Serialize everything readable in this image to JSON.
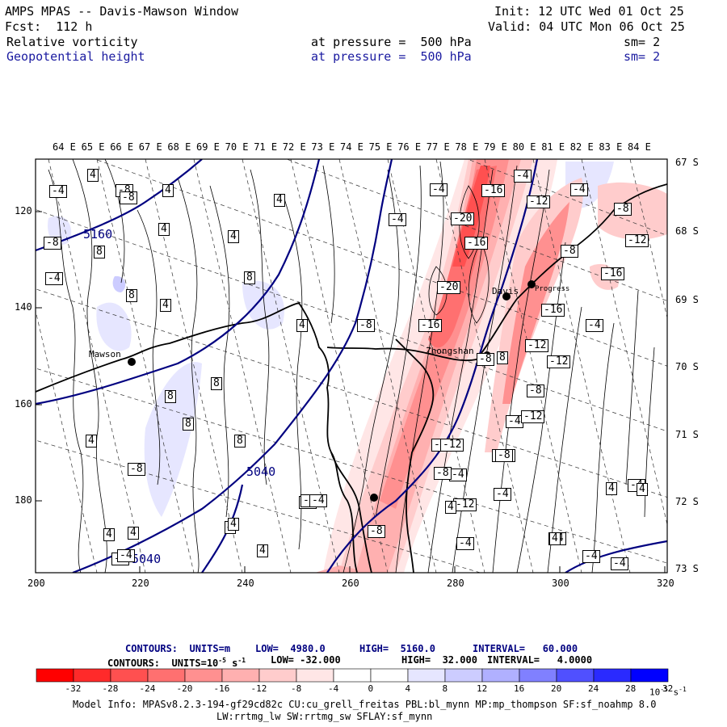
{
  "header": {
    "title": "AMPS MPAS -- Davis-Mawson Window",
    "fcst": "Fcst:  112 h",
    "init": "Init: 12 UTC Wed 01 Oct 25",
    "valid": "Valid: 04 UTC Mon 06 Oct 25",
    "field1": {
      "name": "Relative vorticity",
      "level": "at pressure =  500 hPa",
      "sm": "sm= 2"
    },
    "field2": {
      "name": "Geopotential height",
      "level": "at pressure =  500 hPa",
      "sm": "sm= 2"
    }
  },
  "map": {
    "top_lon_labels": [
      "64 E",
      "65 E",
      "66 E",
      "67 E",
      "68 E",
      "69 E",
      "70 E",
      "71 E",
      "72 E",
      "73 E",
      "74 E",
      "75 E",
      "76 E",
      "77 E",
      "78 E",
      "79 E",
      "80 E",
      "81 E",
      "82 E",
      "83 E",
      "84 E"
    ],
    "right_lat_labels": [
      "67 S",
      "68 S",
      "69 S",
      "70 S",
      "71 S",
      "72 S",
      "73 S"
    ],
    "left_y_ticks": [
      "120",
      "140",
      "160",
      "180"
    ],
    "bottom_x_ticks": [
      "200",
      "220",
      "240",
      "260",
      "280",
      "300",
      "320"
    ],
    "places": [
      "Mawson",
      "Davis",
      "Zhongshan",
      "Progress"
    ],
    "height_labels": [
      "5160",
      "5040",
      "5040"
    ],
    "vort_labels": [
      "4",
      "-4",
      "-8",
      "4",
      "4",
      "-8",
      "8",
      "4",
      "4",
      "-4",
      "-8",
      "8",
      "4",
      "8",
      "4",
      "8",
      "8",
      "8",
      "4",
      "8",
      "4",
      "4",
      "-4",
      "-8",
      "4",
      "-8",
      "-4",
      "-4",
      "-16",
      "-20",
      "-16",
      "-20",
      "-16",
      "-12",
      "-12",
      "-12",
      "-8",
      "-4",
      "-12",
      "-8",
      "-4",
      "-4",
      "-4",
      "-12",
      "-4",
      "-8",
      "8",
      "-4",
      "-16",
      "-12",
      "-8",
      "-4",
      "-12",
      "-8",
      "-16",
      "-4",
      "-12",
      "-8",
      "-8",
      "-8",
      "-4",
      "-4",
      "4",
      "4",
      "-4",
      "4",
      "4",
      "-4",
      "-4",
      "-8",
      "4",
      "4",
      "-4"
    ]
  },
  "legend": {
    "line1": {
      "contours": "CONTOURS:  UNITS=m",
      "low": "LOW=  4980.0",
      "high": "HIGH=  5160.0",
      "interval": "INTERVAL=   60.000"
    },
    "line2": {
      "contours": "CONTOURS:  UNITS=10",
      "exp": "-5",
      "s": " s",
      "sexp": "-1",
      "low": "LOW= -32.000",
      "high": "HIGH=  32.000",
      "interval": "INTERVAL=   4.0000"
    },
    "colorbar_labels": [
      "-32",
      "-28",
      "-24",
      "-20",
      "-16",
      "-12",
      "-8",
      "-4",
      "0",
      "4",
      "8",
      "12",
      "16",
      "20",
      "24",
      "28",
      "32"
    ],
    "colorbar_unit": "10",
    "colorbar_unit_exp": "-5",
    "colorbar_unit_s": " s",
    "colorbar_unit_sexp": "-1",
    "colorbar_colors": [
      "#ff0000",
      "#ff2a2a",
      "#ff5050",
      "#ff7070",
      "#ff9090",
      "#ffb0b0",
      "#ffcccc",
      "#ffe6e6",
      "#ffffff",
      "#ffffff",
      "#e6e6ff",
      "#ccccff",
      "#b0b0ff",
      "#8080ff",
      "#5050ff",
      "#2a2aff",
      "#0000ff"
    ]
  },
  "footer": {
    "model_info": "Model Info: MPASv8.2.3-194-gf29cd82c CU:cu_grell_freitas PBL:bl_mynn MP:mp_thompson SF:sf_noahmp 8.0",
    "physics": "LW:rrtmg_lw SW:rrtmg_sw SFLAY:sf_mynn"
  },
  "colors": {
    "height_contour": "#000080",
    "header_blue": "#1a1aa0"
  }
}
